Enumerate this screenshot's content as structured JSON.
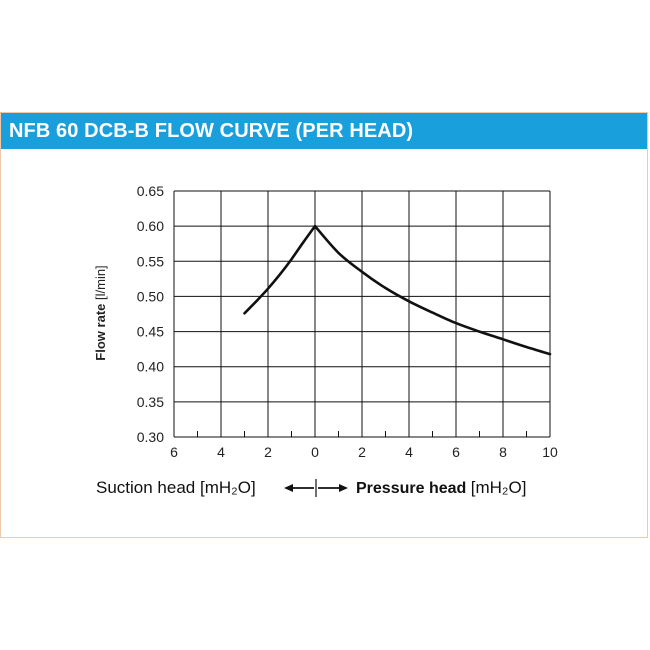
{
  "title": "NFB 60 DCB-B FLOW CURVE (PER HEAD)",
  "colors": {
    "title_bar": "#1a9fdd",
    "panel_border": "#f2c9a8",
    "curve": "#111111",
    "grid": "#111111"
  },
  "chart_data": {
    "type": "line",
    "ylabel": "Flow rate",
    "ylabel_unit": "[l/min]",
    "ylim": [
      0.3,
      0.65
    ],
    "yticks": [
      "0.30",
      "0.35",
      "0.40",
      "0.45",
      "0.50",
      "0.55",
      "0.60",
      "0.65"
    ],
    "xticks": [
      "6",
      "4",
      "2",
      "0",
      "2",
      "4",
      "6",
      "8",
      "10"
    ],
    "grid": true,
    "xlabel_left": "Suction head [mH₂O]",
    "xlabel_right_bold": "Pressure head",
    "xlabel_right_unit": "[mH₂O]",
    "series": [
      {
        "segment": "suction",
        "x": [
          3,
          2.5,
          2,
          1.5,
          1,
          0.5,
          0
        ],
        "y": [
          0.476,
          0.493,
          0.511,
          0.531,
          0.553,
          0.577,
          0.6
        ]
      },
      {
        "segment": "pressure",
        "x": [
          0,
          1,
          2,
          3,
          4,
          5,
          6,
          7,
          8,
          9,
          10
        ],
        "y": [
          0.6,
          0.562,
          0.535,
          0.512,
          0.493,
          0.477,
          0.462,
          0.45,
          0.439,
          0.428,
          0.418
        ]
      }
    ]
  }
}
